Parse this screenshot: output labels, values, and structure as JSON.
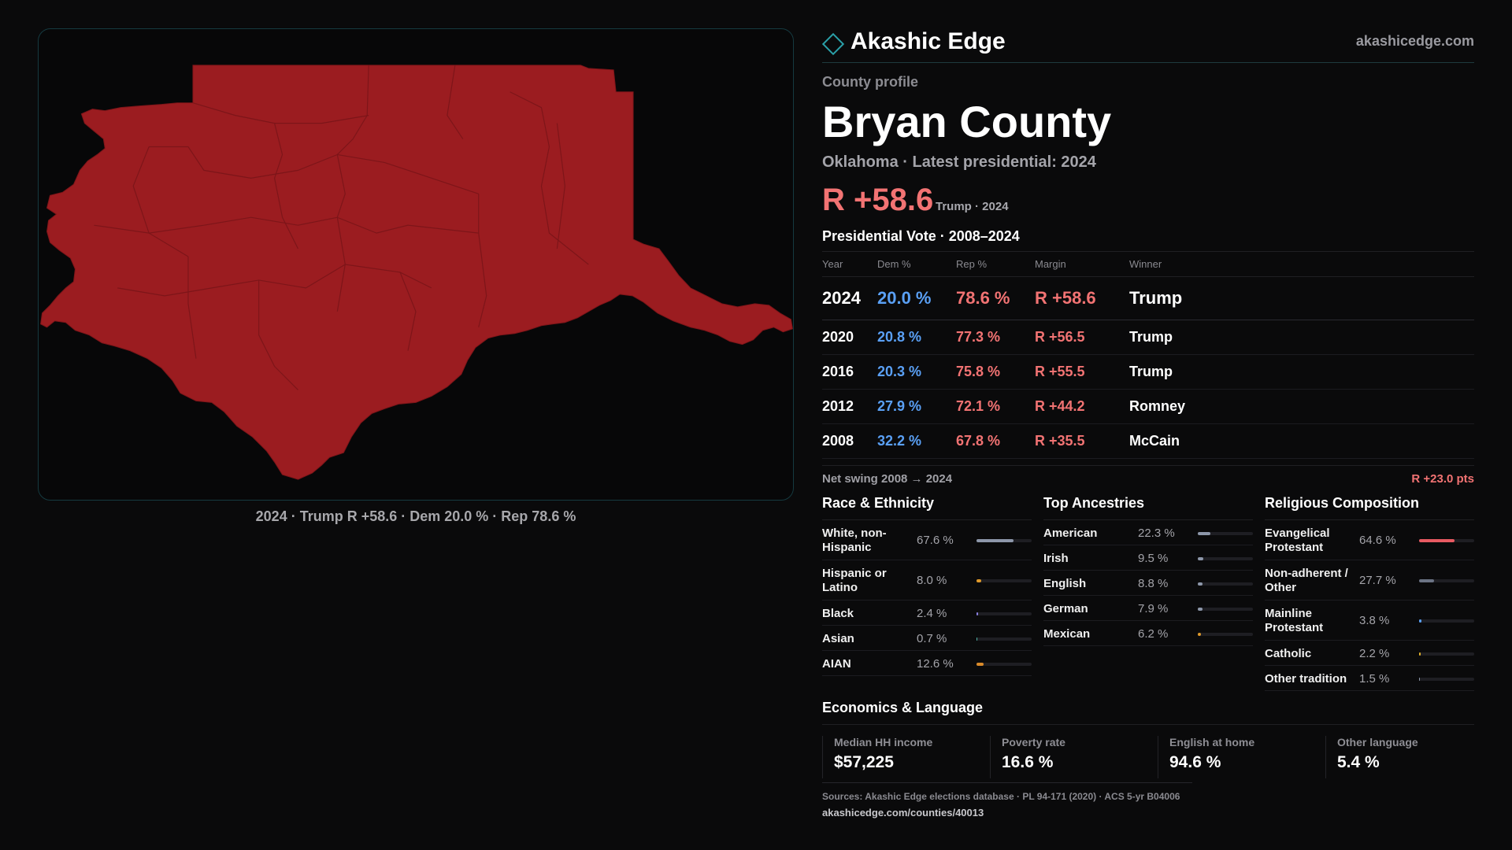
{
  "brand": {
    "name": "Akashic Edge",
    "url": "akashicedge.com",
    "icon": "diamond-icon",
    "accent": "#2aa0a8"
  },
  "profile": {
    "label": "County profile",
    "county": "Bryan County",
    "state_line": "Oklahoma · Latest presidential: 2024",
    "margin": "R +58.6",
    "margin_sub": "Trump · 2024"
  },
  "map": {
    "caption": "2024 · Trump R +58.6 · Dem 20.0 % · Rep 78.6 %",
    "fill_color": "#9b1c20"
  },
  "vote": {
    "title": "Presidential Vote · 2008–2024",
    "headers": [
      "Year",
      "Dem %",
      "Rep %",
      "Margin",
      "Winner"
    ],
    "rows": [
      {
        "year": "2024",
        "dem": "20.0 %",
        "rep": "78.6 %",
        "margin": "R +58.6",
        "winner": "Trump"
      },
      {
        "year": "2020",
        "dem": "20.8 %",
        "rep": "77.3 %",
        "margin": "R +56.5",
        "winner": "Trump"
      },
      {
        "year": "2016",
        "dem": "20.3 %",
        "rep": "75.8 %",
        "margin": "R +55.5",
        "winner": "Trump"
      },
      {
        "year": "2012",
        "dem": "27.9 %",
        "rep": "72.1 %",
        "margin": "R +44.2",
        "winner": "Romney"
      },
      {
        "year": "2008",
        "dem": "32.2 %",
        "rep": "67.8 %",
        "margin": "R +35.5",
        "winner": "McCain"
      }
    ],
    "swing_label": "Net swing 2008 → 2024",
    "swing_value": "R +23.0 pts",
    "colors": {
      "dem": "#5aa0f5",
      "rep": "#f27373"
    }
  },
  "race": {
    "title": "Race & Ethnicity",
    "rows": [
      {
        "label": "White, non-Hispanic",
        "pct": "67.6 %",
        "value": 67.6,
        "color": "#8d97aa"
      },
      {
        "label": "Hispanic or Latino",
        "pct": "8.0 %",
        "value": 8.0,
        "color": "#e09a2a"
      },
      {
        "label": "Black",
        "pct": "2.4 %",
        "value": 2.4,
        "color": "#8a7fe0"
      },
      {
        "label": "Asian",
        "pct": "0.7 %",
        "value": 0.7,
        "color": "#4fb5a8"
      },
      {
        "label": "AIAN",
        "pct": "12.6 %",
        "value": 12.6,
        "color": "#d98a2a"
      }
    ]
  },
  "ancestry": {
    "title": "Top Ancestries",
    "rows": [
      {
        "label": "American",
        "pct": "22.3 %",
        "value": 22.3,
        "color": "#8d97aa"
      },
      {
        "label": "Irish",
        "pct": "9.5 %",
        "value": 9.5,
        "color": "#8d97aa"
      },
      {
        "label": "English",
        "pct": "8.8 %",
        "value": 8.8,
        "color": "#8d97aa"
      },
      {
        "label": "German",
        "pct": "7.9 %",
        "value": 7.9,
        "color": "#8d97aa"
      },
      {
        "label": "Mexican",
        "pct": "6.2 %",
        "value": 6.2,
        "color": "#e09a2a"
      }
    ]
  },
  "religion": {
    "title": "Religious Composition",
    "rows": [
      {
        "label": "Evangelical Protestant",
        "pct": "64.6 %",
        "value": 64.6,
        "color": "#e85a62"
      },
      {
        "label": "Non-adherent / Other",
        "pct": "27.7 %",
        "value": 27.7,
        "color": "#6b7384"
      },
      {
        "label": "Mainline Protestant",
        "pct": "3.8 %",
        "value": 3.8,
        "color": "#5aa0f5"
      },
      {
        "label": "Catholic",
        "pct": "2.2 %",
        "value": 2.2,
        "color": "#e0b02a"
      },
      {
        "label": "Other tradition",
        "pct": "1.5 %",
        "value": 1.5,
        "color": "#8d97aa"
      }
    ]
  },
  "econ": {
    "title": "Economics & Language",
    "cells": [
      {
        "label": "Median HH income",
        "value": "$57,225"
      },
      {
        "label": "Poverty rate",
        "value": "16.6 %"
      },
      {
        "label": "English at home",
        "value": "94.6 %"
      },
      {
        "label": "Other language",
        "value": "5.4 %"
      }
    ]
  },
  "footer": {
    "sources": "Sources: Akashic Edge elections database · PL 94-171 (2020) · ACS 5-yr B04006",
    "url": "akashicedge.com/counties/40013"
  }
}
